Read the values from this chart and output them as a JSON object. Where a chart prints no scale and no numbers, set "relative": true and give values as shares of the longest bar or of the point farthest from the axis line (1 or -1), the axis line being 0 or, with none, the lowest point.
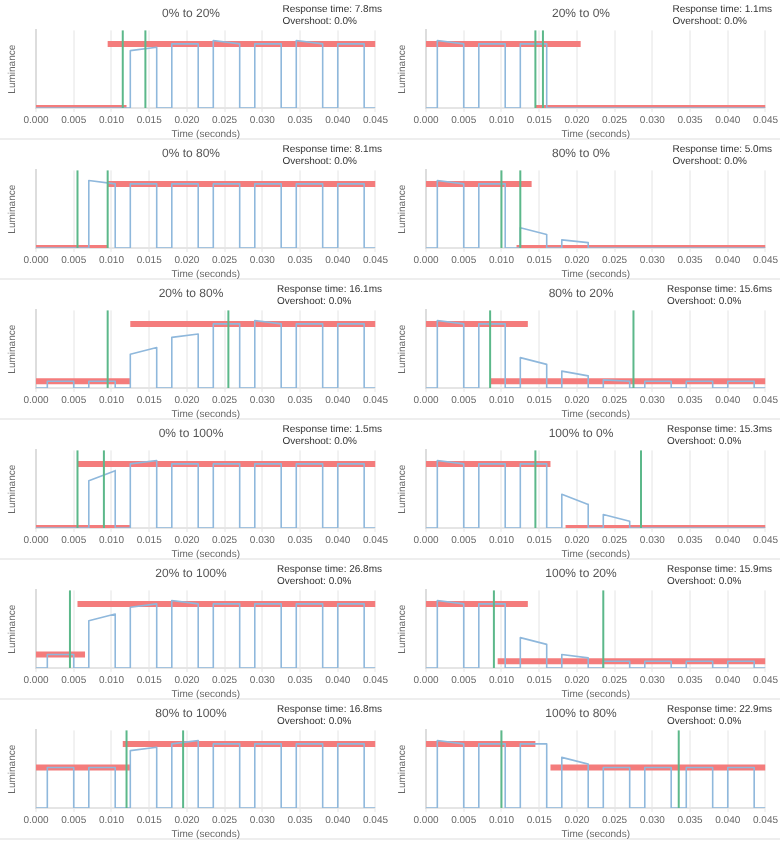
{
  "chart_data": [
    {
      "type": "line",
      "title": "0% to 20%",
      "xlabel": "Time (seconds)",
      "ylabel": "Luminance",
      "annotations": [
        "Response time: 7.8ms",
        "Overshoot: 0.0%"
      ],
      "relative": true,
      "grid": "x",
      "xlim": [
        0,
        0.045
      ],
      "xticks": [
        {
          "value": 0,
          "label": "0.000"
        },
        {
          "value": 0.005,
          "label": "0.005"
        },
        {
          "value": 0.01,
          "label": "0.010"
        },
        {
          "value": 0.015,
          "label": "0.015"
        },
        {
          "value": 0.02,
          "label": "0.020"
        },
        {
          "value": 0.025,
          "label": "0.025"
        },
        {
          "value": 0.03,
          "label": "0.030"
        },
        {
          "value": 0.035,
          "label": "0.035"
        },
        {
          "value": 0.04,
          "label": "0.040"
        },
        {
          "value": 0.045,
          "label": "0.045"
        }
      ],
      "ref_lines": [
        {
          "axis": "x",
          "value": 0.0115,
          "color": "#5cb88a"
        },
        {
          "axis": "x",
          "value": 0.0145,
          "color": "#5cb88a"
        }
      ],
      "series": [
        {
          "color": "#8fb8dc",
          "x": [
            0,
            0.0015,
            0.0015,
            0.005,
            0.005,
            0.007,
            0.007,
            0.0105,
            0.0105,
            0.0125,
            0.0125,
            0.016,
            0.016,
            0.018,
            0.018,
            0.0215,
            0.0215,
            0.0235,
            0.0235,
            0.027,
            0.027,
            0.029,
            0.029,
            0.0325,
            0.0325,
            0.0345,
            0.0345,
            0.038,
            0.038,
            0.04,
            0.04,
            0.0435,
            0.0435,
            0.045
          ],
          "values": [
            0,
            0,
            0,
            0,
            0,
            0,
            0,
            0,
            0,
            0,
            0.85,
            0.9,
            0,
            0,
            0.95,
            0.95,
            0,
            0,
            1,
            0.95,
            0,
            0,
            0.95,
            0.95,
            0,
            0,
            1,
            0.95,
            0,
            0,
            0.95,
            0.95,
            0,
            0
          ]
        },
        {
          "color": "#f47c7c",
          "x": [
            0,
            0.012
          ],
          "values": [
            0,
            0
          ]
        },
        {
          "color": "#f47c7c",
          "x": [
            0.0095,
            0.045
          ],
          "values": [
            0.95,
            0.95
          ]
        }
      ]
    },
    {
      "type": "line",
      "title": "20% to 0%",
      "xlabel": "Time (seconds)",
      "ylabel": "Luminance",
      "annotations": [
        "Response time: 1.1ms",
        "Overshoot: 0.0%"
      ],
      "relative": true,
      "grid": "x",
      "xlim": [
        0,
        0.045
      ],
      "xticks": [
        {
          "value": 0,
          "label": "0.000"
        },
        {
          "value": 0.005,
          "label": "0.005"
        },
        {
          "value": 0.01,
          "label": "0.010"
        },
        {
          "value": 0.015,
          "label": "0.015"
        },
        {
          "value": 0.02,
          "label": "0.020"
        },
        {
          "value": 0.025,
          "label": "0.025"
        },
        {
          "value": 0.03,
          "label": "0.030"
        },
        {
          "value": 0.035,
          "label": "0.035"
        },
        {
          "value": 0.04,
          "label": "0.040"
        },
        {
          "value": 0.045,
          "label": "0.045"
        }
      ],
      "ref_lines": [
        {
          "axis": "x",
          "value": 0.0145,
          "color": "#5cb88a"
        },
        {
          "axis": "x",
          "value": 0.0155,
          "color": "#5cb88a"
        }
      ],
      "series": [
        {
          "color": "#8fb8dc",
          "x": [
            0,
            0.0015,
            0.0015,
            0.005,
            0.005,
            0.007,
            0.007,
            0.0105,
            0.0105,
            0.0125,
            0.0125,
            0.016,
            0.016,
            0.018,
            0.018,
            0.0215,
            0.0215,
            0.0235,
            0.0235,
            0.027,
            0.027,
            0.029,
            0.029,
            0.0325,
            0.0325,
            0.0345,
            0.0345,
            0.038,
            0.038,
            0.04,
            0.04,
            0.0435,
            0.0435,
            0.045
          ],
          "values": [
            0,
            0,
            1,
            0.95,
            0,
            0,
            0.95,
            0.95,
            0,
            0,
            0.95,
            0.95,
            0,
            0,
            0,
            0,
            0,
            0,
            0,
            0,
            0,
            0,
            0,
            0,
            0,
            0,
            0,
            0,
            0,
            0,
            0,
            0,
            0,
            0
          ]
        },
        {
          "color": "#f47c7c",
          "x": [
            0,
            0.0205
          ],
          "values": [
            0.95,
            0.95
          ]
        },
        {
          "color": "#f47c7c",
          "x": [
            0.0145,
            0.045
          ],
          "values": [
            0,
            0
          ]
        }
      ]
    },
    {
      "type": "line",
      "title": "0% to 80%",
      "xlabel": "Time (seconds)",
      "ylabel": "Luminance",
      "annotations": [
        "Response time: 8.1ms",
        "Overshoot: 0.0%"
      ],
      "relative": true,
      "grid": "x",
      "xlim": [
        0,
        0.045
      ],
      "xticks": [
        {
          "value": 0,
          "label": "0.000"
        },
        {
          "value": 0.005,
          "label": "0.005"
        },
        {
          "value": 0.01,
          "label": "0.010"
        },
        {
          "value": 0.015,
          "label": "0.015"
        },
        {
          "value": 0.02,
          "label": "0.020"
        },
        {
          "value": 0.025,
          "label": "0.025"
        },
        {
          "value": 0.03,
          "label": "0.030"
        },
        {
          "value": 0.035,
          "label": "0.035"
        },
        {
          "value": 0.04,
          "label": "0.040"
        },
        {
          "value": 0.045,
          "label": "0.045"
        }
      ],
      "ref_lines": [
        {
          "axis": "x",
          "value": 0.0055,
          "color": "#5cb88a"
        },
        {
          "axis": "x",
          "value": 0.0095,
          "color": "#5cb88a"
        }
      ],
      "series": [
        {
          "color": "#8fb8dc",
          "x": [
            0,
            0.0015,
            0.0015,
            0.005,
            0.005,
            0.007,
            0.007,
            0.0105,
            0.0105,
            0.0125,
            0.0125,
            0.016,
            0.016,
            0.018,
            0.018,
            0.0215,
            0.0215,
            0.0235,
            0.0235,
            0.027,
            0.027,
            0.029,
            0.029,
            0.0325,
            0.0325,
            0.0345,
            0.0345,
            0.038,
            0.038,
            0.04,
            0.04,
            0.0435,
            0.0435,
            0.045
          ],
          "values": [
            0,
            0,
            0,
            0,
            0,
            0,
            1,
            0.95,
            0,
            0,
            0.95,
            0.95,
            0,
            0,
            0.95,
            0.95,
            0,
            0,
            0.95,
            0.95,
            0,
            0,
            0.95,
            0.95,
            0,
            0,
            0.95,
            0.95,
            0,
            0,
            0.95,
            0.95,
            0,
            0
          ]
        },
        {
          "color": "#f47c7c",
          "x": [
            0,
            0.0095
          ],
          "values": [
            0,
            0
          ]
        },
        {
          "color": "#f47c7c",
          "x": [
            0.0095,
            0.045
          ],
          "values": [
            0.95,
            0.95
          ]
        }
      ]
    },
    {
      "type": "line",
      "title": "80% to 0%",
      "xlabel": "Time (seconds)",
      "ylabel": "Luminance",
      "annotations": [
        "Response time: 5.0ms",
        "Overshoot: 0.0%"
      ],
      "relative": true,
      "grid": "x",
      "xlim": [
        0,
        0.045
      ],
      "xticks": [
        {
          "value": 0,
          "label": "0.000"
        },
        {
          "value": 0.005,
          "label": "0.005"
        },
        {
          "value": 0.01,
          "label": "0.010"
        },
        {
          "value": 0.015,
          "label": "0.015"
        },
        {
          "value": 0.02,
          "label": "0.020"
        },
        {
          "value": 0.025,
          "label": "0.025"
        },
        {
          "value": 0.03,
          "label": "0.030"
        },
        {
          "value": 0.035,
          "label": "0.035"
        },
        {
          "value": 0.04,
          "label": "0.040"
        },
        {
          "value": 0.045,
          "label": "0.045"
        }
      ],
      "ref_lines": [
        {
          "axis": "x",
          "value": 0.01,
          "color": "#5cb88a"
        },
        {
          "axis": "x",
          "value": 0.0125,
          "color": "#5cb88a"
        }
      ],
      "series": [
        {
          "color": "#8fb8dc",
          "x": [
            0,
            0.0015,
            0.0015,
            0.005,
            0.005,
            0.007,
            0.007,
            0.0105,
            0.0105,
            0.0125,
            0.0125,
            0.016,
            0.016,
            0.018,
            0.018,
            0.0215,
            0.0215,
            0.0235,
            0.0235,
            0.027,
            0.027,
            0.029,
            0.029,
            0.0325,
            0.0325,
            0.0345,
            0.0345,
            0.038,
            0.038,
            0.04,
            0.04,
            0.0435,
            0.0435,
            0.045
          ],
          "values": [
            0,
            0,
            1,
            0.95,
            0,
            0,
            0.95,
            0.95,
            0,
            0,
            0.3,
            0.2,
            0,
            0,
            0.12,
            0.08,
            0,
            0,
            0,
            0,
            0,
            0,
            0,
            0,
            0,
            0,
            0,
            0,
            0,
            0,
            0,
            0,
            0,
            0
          ]
        },
        {
          "color": "#f47c7c",
          "x": [
            0,
            0.014
          ],
          "values": [
            0.95,
            0.95
          ]
        },
        {
          "color": "#f47c7c",
          "x": [
            0.012,
            0.045
          ],
          "values": [
            0,
            0
          ]
        }
      ]
    },
    {
      "type": "line",
      "title": "20% to 80%",
      "xlabel": "Time (seconds)",
      "ylabel": "Luminance",
      "annotations": [
        "Response time: 16.1ms",
        "Overshoot: 0.0%"
      ],
      "relative": true,
      "grid": "x",
      "xlim": [
        0,
        0.045
      ],
      "xticks": [
        {
          "value": 0,
          "label": "0.000"
        },
        {
          "value": 0.005,
          "label": "0.005"
        },
        {
          "value": 0.01,
          "label": "0.010"
        },
        {
          "value": 0.015,
          "label": "0.015"
        },
        {
          "value": 0.02,
          "label": "0.020"
        },
        {
          "value": 0.025,
          "label": "0.025"
        },
        {
          "value": 0.03,
          "label": "0.030"
        },
        {
          "value": 0.035,
          "label": "0.035"
        },
        {
          "value": 0.04,
          "label": "0.040"
        },
        {
          "value": 0.045,
          "label": "0.045"
        }
      ],
      "ref_lines": [
        {
          "axis": "x",
          "value": 0.0095,
          "color": "#5cb88a"
        },
        {
          "axis": "x",
          "value": 0.0255,
          "color": "#5cb88a"
        }
      ],
      "series": [
        {
          "color": "#8fb8dc",
          "x": [
            0,
            0.0015,
            0.0015,
            0.005,
            0.005,
            0.007,
            0.007,
            0.0105,
            0.0105,
            0.0125,
            0.0125,
            0.016,
            0.016,
            0.018,
            0.018,
            0.0215,
            0.0215,
            0.0235,
            0.0235,
            0.027,
            0.027,
            0.029,
            0.029,
            0.0325,
            0.0325,
            0.0345,
            0.0345,
            0.038,
            0.038,
            0.04,
            0.04,
            0.0435,
            0.0435,
            0.045
          ],
          "values": [
            0,
            0,
            0.1,
            0.1,
            0,
            0,
            0.1,
            0.1,
            0,
            0,
            0.5,
            0.6,
            0,
            0,
            0.75,
            0.8,
            0,
            0,
            0.95,
            0.95,
            0,
            0,
            1,
            0.95,
            0,
            0,
            0.95,
            0.95,
            0,
            0,
            0.95,
            0.95,
            0,
            0
          ]
        },
        {
          "color": "#f47c7c",
          "x": [
            0,
            0.0125
          ],
          "values": [
            0.1,
            0.1
          ]
        },
        {
          "color": "#f47c7c",
          "x": [
            0.0125,
            0.045
          ],
          "values": [
            0.95,
            0.95
          ]
        }
      ]
    },
    {
      "type": "line",
      "title": "80% to 20%",
      "xlabel": "Time (seconds)",
      "ylabel": "Luminance",
      "annotations": [
        "Response time: 15.6ms",
        "Overshoot: 0.0%"
      ],
      "relative": true,
      "grid": "x",
      "xlim": [
        0,
        0.045
      ],
      "xticks": [
        {
          "value": 0,
          "label": "0.000"
        },
        {
          "value": 0.005,
          "label": "0.005"
        },
        {
          "value": 0.01,
          "label": "0.010"
        },
        {
          "value": 0.015,
          "label": "0.015"
        },
        {
          "value": 0.02,
          "label": "0.020"
        },
        {
          "value": 0.025,
          "label": "0.025"
        },
        {
          "value": 0.03,
          "label": "0.030"
        },
        {
          "value": 0.035,
          "label": "0.035"
        },
        {
          "value": 0.04,
          "label": "0.040"
        },
        {
          "value": 0.045,
          "label": "0.045"
        }
      ],
      "ref_lines": [
        {
          "axis": "x",
          "value": 0.0085,
          "color": "#5cb88a"
        },
        {
          "axis": "x",
          "value": 0.0275,
          "color": "#5cb88a"
        }
      ],
      "series": [
        {
          "color": "#8fb8dc",
          "x": [
            0,
            0.0015,
            0.0015,
            0.005,
            0.005,
            0.007,
            0.007,
            0.0105,
            0.0105,
            0.0125,
            0.0125,
            0.016,
            0.016,
            0.018,
            0.018,
            0.0215,
            0.0215,
            0.0235,
            0.0235,
            0.027,
            0.027,
            0.029,
            0.029,
            0.0325,
            0.0325,
            0.0345,
            0.0345,
            0.038,
            0.038,
            0.04,
            0.04,
            0.0435,
            0.0435,
            0.045
          ],
          "values": [
            0,
            0,
            1,
            0.95,
            0,
            0,
            0.95,
            0.95,
            0,
            0,
            0.45,
            0.35,
            0,
            0,
            0.25,
            0.18,
            0,
            0,
            0.12,
            0.1,
            0,
            0,
            0.1,
            0.1,
            0,
            0,
            0.1,
            0.1,
            0,
            0,
            0.1,
            0.1,
            0,
            0
          ]
        },
        {
          "color": "#f47c7c",
          "x": [
            0,
            0.0135
          ],
          "values": [
            0.95,
            0.95
          ]
        },
        {
          "color": "#f47c7c",
          "x": [
            0.0085,
            0.045
          ],
          "values": [
            0.1,
            0.1
          ]
        }
      ]
    },
    {
      "type": "line",
      "title": "0% to 100%",
      "xlabel": "Time (seconds)",
      "ylabel": "Luminance",
      "annotations": [
        "Response time: 1.5ms",
        "Overshoot: 0.0%"
      ],
      "relative": true,
      "grid": "x",
      "xlim": [
        0,
        0.045
      ],
      "xticks": [
        {
          "value": 0,
          "label": "0.000"
        },
        {
          "value": 0.005,
          "label": "0.005"
        },
        {
          "value": 0.01,
          "label": "0.010"
        },
        {
          "value": 0.015,
          "label": "0.015"
        },
        {
          "value": 0.02,
          "label": "0.020"
        },
        {
          "value": 0.025,
          "label": "0.025"
        },
        {
          "value": 0.03,
          "label": "0.030"
        },
        {
          "value": 0.035,
          "label": "0.035"
        },
        {
          "value": 0.04,
          "label": "0.040"
        },
        {
          "value": 0.045,
          "label": "0.045"
        }
      ],
      "ref_lines": [
        {
          "axis": "x",
          "value": 0.0055,
          "color": "#5cb88a"
        },
        {
          "axis": "x",
          "value": 0.009,
          "color": "#5cb88a"
        }
      ],
      "series": [
        {
          "color": "#8fb8dc",
          "x": [
            0,
            0.0015,
            0.0015,
            0.005,
            0.005,
            0.007,
            0.007,
            0.0105,
            0.0105,
            0.0125,
            0.0125,
            0.016,
            0.016,
            0.018,
            0.018,
            0.0215,
            0.0215,
            0.0235,
            0.0235,
            0.027,
            0.027,
            0.029,
            0.029,
            0.0325,
            0.0325,
            0.0345,
            0.0345,
            0.038,
            0.038,
            0.04,
            0.04,
            0.0435,
            0.0435,
            0.045
          ],
          "values": [
            0,
            0,
            0,
            0,
            0,
            0,
            0.7,
            0.85,
            0,
            0,
            0.95,
            1,
            0,
            0,
            0.95,
            0.95,
            0,
            0,
            0.95,
            0.95,
            0,
            0,
            0.95,
            0.95,
            0,
            0,
            0.95,
            0.95,
            0,
            0,
            0.95,
            0.95,
            0,
            0
          ]
        },
        {
          "color": "#f47c7c",
          "x": [
            0,
            0.0125
          ],
          "values": [
            0,
            0
          ]
        },
        {
          "color": "#f47c7c",
          "x": [
            0.0055,
            0.045
          ],
          "values": [
            0.95,
            0.95
          ]
        }
      ]
    },
    {
      "type": "line",
      "title": "100% to 0%",
      "xlabel": "Time (seconds)",
      "ylabel": "Luminance",
      "annotations": [
        "Response time: 15.3ms",
        "Overshoot: 0.0%"
      ],
      "relative": true,
      "grid": "x",
      "xlim": [
        0,
        0.045
      ],
      "xticks": [
        {
          "value": 0,
          "label": "0.000"
        },
        {
          "value": 0.005,
          "label": "0.005"
        },
        {
          "value": 0.01,
          "label": "0.010"
        },
        {
          "value": 0.015,
          "label": "0.015"
        },
        {
          "value": 0.02,
          "label": "0.020"
        },
        {
          "value": 0.025,
          "label": "0.025"
        },
        {
          "value": 0.03,
          "label": "0.030"
        },
        {
          "value": 0.035,
          "label": "0.035"
        },
        {
          "value": 0.04,
          "label": "0.040"
        },
        {
          "value": 0.045,
          "label": "0.045"
        }
      ],
      "ref_lines": [
        {
          "axis": "x",
          "value": 0.0145,
          "color": "#5cb88a"
        },
        {
          "axis": "x",
          "value": 0.0285,
          "color": "#5cb88a"
        }
      ],
      "series": [
        {
          "color": "#8fb8dc",
          "x": [
            0,
            0.0015,
            0.0015,
            0.005,
            0.005,
            0.007,
            0.007,
            0.0105,
            0.0105,
            0.0125,
            0.0125,
            0.016,
            0.016,
            0.018,
            0.018,
            0.0215,
            0.0215,
            0.0235,
            0.0235,
            0.027,
            0.027,
            0.029,
            0.029,
            0.0325,
            0.0325,
            0.0345,
            0.0345,
            0.038,
            0.038,
            0.04,
            0.04,
            0.0435,
            0.0435,
            0.045
          ],
          "values": [
            0,
            0,
            1,
            0.95,
            0,
            0,
            0.95,
            0.95,
            0,
            0,
            0.95,
            0.95,
            0,
            0,
            0.5,
            0.35,
            0,
            0,
            0.2,
            0.1,
            0,
            0,
            0,
            0,
            0,
            0,
            0,
            0,
            0,
            0,
            0,
            0,
            0,
            0
          ]
        },
        {
          "color": "#f47c7c",
          "x": [
            0,
            0.0165
          ],
          "values": [
            0.95,
            0.95
          ]
        },
        {
          "color": "#f47c7c",
          "x": [
            0.0185,
            0.045
          ],
          "values": [
            0,
            0
          ]
        }
      ]
    },
    {
      "type": "line",
      "title": "20% to 100%",
      "xlabel": "Time (seconds)",
      "ylabel": "Luminance",
      "annotations": [
        "Response time: 26.8ms",
        "Overshoot: 0.0%"
      ],
      "relative": true,
      "grid": "x",
      "xlim": [
        0,
        0.045
      ],
      "xticks": [
        {
          "value": 0,
          "label": "0.000"
        },
        {
          "value": 0.005,
          "label": "0.005"
        },
        {
          "value": 0.01,
          "label": "0.010"
        },
        {
          "value": 0.015,
          "label": "0.015"
        },
        {
          "value": 0.02,
          "label": "0.020"
        },
        {
          "value": 0.025,
          "label": "0.025"
        },
        {
          "value": 0.03,
          "label": "0.030"
        },
        {
          "value": 0.035,
          "label": "0.035"
        },
        {
          "value": 0.04,
          "label": "0.040"
        },
        {
          "value": 0.045,
          "label": "0.045"
        }
      ],
      "ref_lines": [
        {
          "axis": "x",
          "value": 0.0045,
          "color": "#5cb88a"
        }
      ],
      "series": [
        {
          "color": "#8fb8dc",
          "x": [
            0,
            0.0015,
            0.0015,
            0.005,
            0.005,
            0.007,
            0.007,
            0.0105,
            0.0105,
            0.0125,
            0.0125,
            0.016,
            0.016,
            0.018,
            0.018,
            0.0215,
            0.0215,
            0.0235,
            0.0235,
            0.027,
            0.027,
            0.029,
            0.029,
            0.0325,
            0.0325,
            0.0345,
            0.0345,
            0.038,
            0.038,
            0.04,
            0.04,
            0.0435,
            0.0435,
            0.045
          ],
          "values": [
            0,
            0,
            0.2,
            0.2,
            0,
            0,
            0.7,
            0.8,
            0,
            0,
            0.9,
            0.95,
            0,
            0,
            1,
            0.95,
            0,
            0,
            0.95,
            0.95,
            0,
            0,
            0.95,
            0.95,
            0,
            0,
            0.95,
            0.95,
            0,
            0,
            0.95,
            0.95,
            0,
            0
          ]
        },
        {
          "color": "#f47c7c",
          "x": [
            0,
            0.0065
          ],
          "values": [
            0.2,
            0.2
          ]
        },
        {
          "color": "#f47c7c",
          "x": [
            0.0055,
            0.045
          ],
          "values": [
            0.95,
            0.95
          ]
        }
      ]
    },
    {
      "type": "line",
      "title": "100% to 20%",
      "xlabel": "Time (seconds)",
      "ylabel": "Luminance",
      "annotations": [
        "Response time: 15.9ms",
        "Overshoot: 0.0%"
      ],
      "relative": true,
      "grid": "x",
      "xlim": [
        0,
        0.045
      ],
      "xticks": [
        {
          "value": 0,
          "label": "0.000"
        },
        {
          "value": 0.005,
          "label": "0.005"
        },
        {
          "value": 0.01,
          "label": "0.010"
        },
        {
          "value": 0.015,
          "label": "0.015"
        },
        {
          "value": 0.02,
          "label": "0.020"
        },
        {
          "value": 0.025,
          "label": "0.025"
        },
        {
          "value": 0.03,
          "label": "0.030"
        },
        {
          "value": 0.035,
          "label": "0.035"
        },
        {
          "value": 0.04,
          "label": "0.040"
        },
        {
          "value": 0.045,
          "label": "0.045"
        }
      ],
      "ref_lines": [
        {
          "axis": "x",
          "value": 0.009,
          "color": "#5cb88a"
        },
        {
          "axis": "x",
          "value": 0.0235,
          "color": "#5cb88a"
        }
      ],
      "series": [
        {
          "color": "#8fb8dc",
          "x": [
            0,
            0.0015,
            0.0015,
            0.005,
            0.005,
            0.007,
            0.007,
            0.0105,
            0.0105,
            0.0125,
            0.0125,
            0.016,
            0.016,
            0.018,
            0.018,
            0.0215,
            0.0215,
            0.0235,
            0.0235,
            0.027,
            0.027,
            0.029,
            0.029,
            0.0325,
            0.0325,
            0.0345,
            0.0345,
            0.038,
            0.038,
            0.04,
            0.04,
            0.0435,
            0.0435,
            0.045
          ],
          "values": [
            0,
            0,
            1,
            0.95,
            0,
            0,
            0.95,
            0.95,
            0,
            0,
            0.45,
            0.35,
            0,
            0,
            0.2,
            0.15,
            0,
            0,
            0.1,
            0.1,
            0,
            0,
            0.1,
            0.1,
            0,
            0,
            0.1,
            0.1,
            0,
            0,
            0.1,
            0.1,
            0,
            0
          ]
        },
        {
          "color": "#f47c7c",
          "x": [
            0,
            0.0135
          ],
          "values": [
            0.95,
            0.95
          ]
        },
        {
          "color": "#f47c7c",
          "x": [
            0.0095,
            0.045
          ],
          "values": [
            0.1,
            0.1
          ]
        }
      ]
    },
    {
      "type": "line",
      "title": "80% to 100%",
      "xlabel": "Time (seconds)",
      "ylabel": "Luminance",
      "annotations": [
        "Response time: 16.8ms",
        "Overshoot: 0.0%"
      ],
      "relative": true,
      "grid": "x",
      "xlim": [
        0,
        0.045
      ],
      "xticks": [
        {
          "value": 0,
          "label": "0.000"
        },
        {
          "value": 0.005,
          "label": "0.005"
        },
        {
          "value": 0.01,
          "label": "0.010"
        },
        {
          "value": 0.015,
          "label": "0.015"
        },
        {
          "value": 0.02,
          "label": "0.020"
        },
        {
          "value": 0.025,
          "label": "0.025"
        },
        {
          "value": 0.03,
          "label": "0.030"
        },
        {
          "value": 0.035,
          "label": "0.035"
        },
        {
          "value": 0.04,
          "label": "0.040"
        },
        {
          "value": 0.045,
          "label": "0.045"
        }
      ],
      "ref_lines": [
        {
          "axis": "x",
          "value": 0.012,
          "color": "#5cb88a"
        },
        {
          "axis": "x",
          "value": 0.0195,
          "color": "#5cb88a"
        }
      ],
      "series": [
        {
          "color": "#8fb8dc",
          "x": [
            0,
            0.0015,
            0.0015,
            0.005,
            0.005,
            0.007,
            0.007,
            0.0105,
            0.0105,
            0.0125,
            0.0125,
            0.016,
            0.016,
            0.018,
            0.018,
            0.0215,
            0.0215,
            0.0235,
            0.0235,
            0.027,
            0.027,
            0.029,
            0.029,
            0.0325,
            0.0325,
            0.0345,
            0.0345,
            0.038,
            0.038,
            0.04,
            0.04,
            0.0435,
            0.0435,
            0.045
          ],
          "values": [
            0,
            0,
            0.6,
            0.6,
            0,
            0,
            0.6,
            0.6,
            0,
            0,
            0.85,
            0.9,
            0,
            0,
            0.95,
            1,
            0,
            0,
            0.95,
            0.95,
            0,
            0,
            0.95,
            0.95,
            0,
            0,
            0.95,
            0.95,
            0,
            0,
            0.95,
            0.95,
            0,
            0
          ]
        },
        {
          "color": "#f47c7c",
          "x": [
            0,
            0.0125
          ],
          "values": [
            0.6,
            0.6
          ]
        },
        {
          "color": "#f47c7c",
          "x": [
            0.0115,
            0.045
          ],
          "values": [
            0.95,
            0.95
          ]
        }
      ]
    },
    {
      "type": "line",
      "title": "100% to 80%",
      "xlabel": "Time (seconds)",
      "ylabel": "Luminance",
      "annotations": [
        "Response time: 22.9ms",
        "Overshoot: 0.0%"
      ],
      "relative": true,
      "grid": "x",
      "xlim": [
        0,
        0.045
      ],
      "xticks": [
        {
          "value": 0,
          "label": "0.000"
        },
        {
          "value": 0.005,
          "label": "0.005"
        },
        {
          "value": 0.01,
          "label": "0.010"
        },
        {
          "value": 0.015,
          "label": "0.015"
        },
        {
          "value": 0.02,
          "label": "0.020"
        },
        {
          "value": 0.025,
          "label": "0.025"
        },
        {
          "value": 0.03,
          "label": "0.030"
        },
        {
          "value": 0.035,
          "label": "0.035"
        },
        {
          "value": 0.04,
          "label": "0.040"
        },
        {
          "value": 0.045,
          "label": "0.045"
        }
      ],
      "ref_lines": [
        {
          "axis": "x",
          "value": 0.01,
          "color": "#5cb88a"
        },
        {
          "axis": "x",
          "value": 0.0335,
          "color": "#5cb88a"
        }
      ],
      "series": [
        {
          "color": "#8fb8dc",
          "x": [
            0,
            0.0015,
            0.0015,
            0.005,
            0.005,
            0.007,
            0.007,
            0.0105,
            0.0105,
            0.0125,
            0.0125,
            0.016,
            0.016,
            0.018,
            0.018,
            0.0215,
            0.0215,
            0.0235,
            0.0235,
            0.027,
            0.027,
            0.029,
            0.029,
            0.0325,
            0.0325,
            0.0345,
            0.0345,
            0.038,
            0.038,
            0.04,
            0.04,
            0.0435,
            0.0435,
            0.045
          ],
          "values": [
            0,
            0,
            1,
            0.95,
            0,
            0,
            0.95,
            0.95,
            0,
            0,
            0.95,
            0.95,
            0,
            0,
            0.75,
            0.65,
            0,
            0,
            0.6,
            0.6,
            0,
            0,
            0.6,
            0.6,
            0,
            0,
            0.6,
            0.6,
            0,
            0,
            0.6,
            0.6,
            0,
            0
          ]
        },
        {
          "color": "#f47c7c",
          "x": [
            0,
            0.0145
          ],
          "values": [
            0.95,
            0.95
          ]
        },
        {
          "color": "#f47c7c",
          "x": [
            0.0165,
            0.045
          ],
          "values": [
            0.6,
            0.6
          ]
        }
      ]
    }
  ]
}
